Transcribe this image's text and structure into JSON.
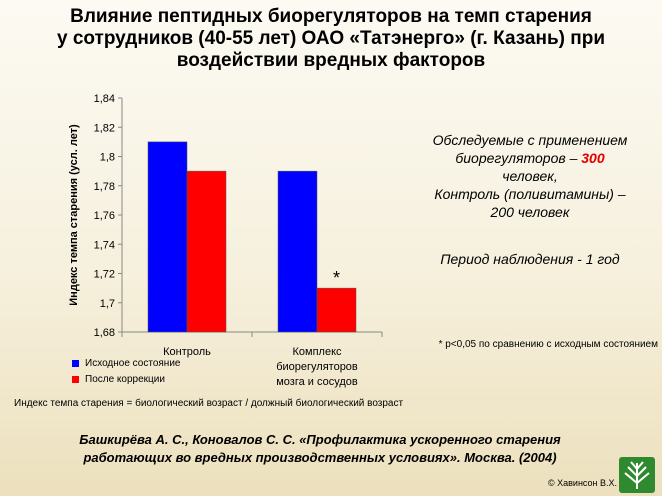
{
  "slide": {
    "title_lines": [
      "Влияние пептидных биорегуляторов на темп старения",
      "у сотрудников (40-55 лет) ОАО «Татэнерго» (г. Казань) при",
      "воздействии вредных факторов"
    ],
    "study_note": {
      "line1": "Обследуемые с применением",
      "line2_prefix": "биорегуляторов – ",
      "line2_number": "300",
      "line3": "человек,",
      "line4": "Контроль (поливитамины) –",
      "line5": "200 человек"
    },
    "period": "Период наблюдения -  1 год",
    "footnote": "* p<0,05 по сравнению с исходным состоянием",
    "formula": "Индекс темпа старения = биологический возраст / должный биологический возраст",
    "reference_lines": [
      "Башкирёва А. С., Коновалов С. С. «Профилактика ускоренного старения",
      "работающих во вредных производственных условиях». Москва. (2004)"
    ],
    "copyright": "© Хавинсон В.Х.",
    "logo_icon": "leaf-logo-icon"
  },
  "chart_data": {
    "type": "bar",
    "ylabel": "Индекс темпа старения (усл. лет)",
    "ylim": [
      1.68,
      1.84
    ],
    "yticks": [
      1.68,
      1.7,
      1.72,
      1.74,
      1.76,
      1.78,
      1.8,
      1.82,
      1.84
    ],
    "ytick_labels": [
      "1,68",
      "1,7",
      "1,72",
      "1,74",
      "1,76",
      "1,78",
      "1,8",
      "1,82",
      "1,84"
    ],
    "categories": [
      [
        "Контроль"
      ],
      [
        "Комплекс",
        "биорегуляторов",
        "мозга и сосудов"
      ]
    ],
    "series": [
      {
        "name": "Исходное состояние",
        "color": "#0000ff",
        "values": [
          1.81,
          1.79
        ]
      },
      {
        "name": "После коррекции",
        "color": "#ff0000",
        "values": [
          1.79,
          1.71
        ]
      }
    ],
    "annotations": [
      {
        "text": "*",
        "category_index": 1,
        "series_index": 1
      }
    ],
    "legend": "bottom-left",
    "grid": false
  }
}
